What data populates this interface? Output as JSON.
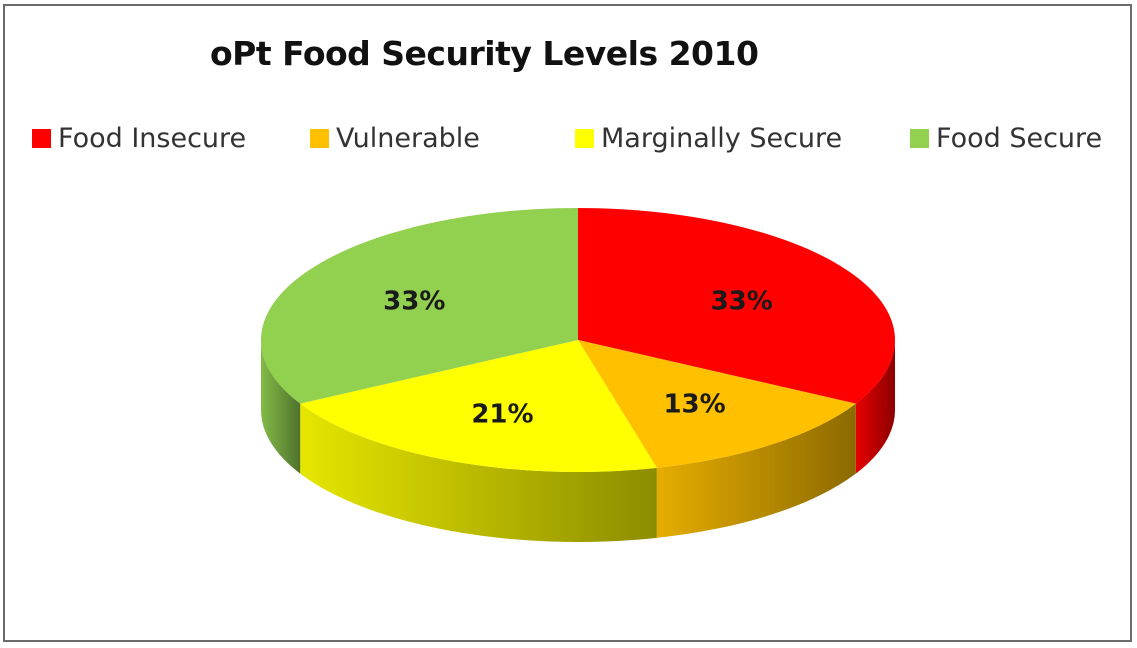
{
  "chart_data": {
    "type": "pie",
    "title": "oPt Food Security Levels 2010",
    "legend_position": "top",
    "categories": [
      "Food Insecure",
      "Vulnerable",
      "Marginally Secure",
      "Food Secure"
    ],
    "values": [
      33,
      13,
      21,
      33
    ],
    "value_labels": [
      "33%",
      "13%",
      "21%",
      "33%"
    ],
    "colors": [
      "#ff0000",
      "#ffc000",
      "#ffff00",
      "#92d050"
    ]
  }
}
